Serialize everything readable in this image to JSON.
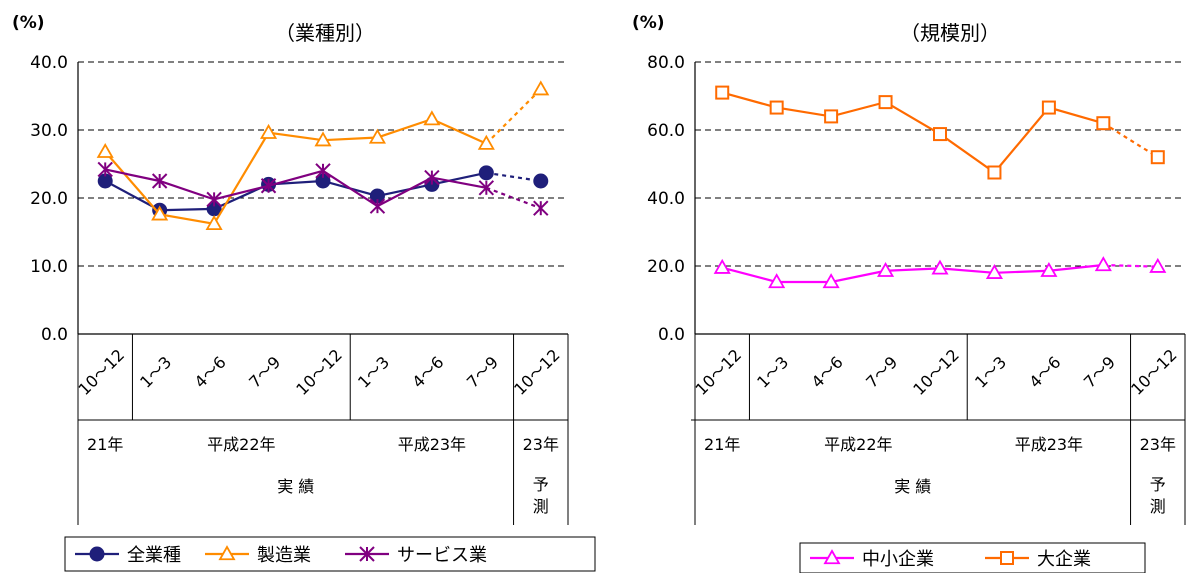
{
  "charts": [
    {
      "unit": "(%)",
      "title": "（業種別）",
      "ylim": [
        0,
        40
      ],
      "yticks": [
        "0.0",
        "10.0",
        "20.0",
        "30.0",
        "40.0"
      ],
      "ytick_values": [
        0,
        10,
        20,
        30,
        40
      ],
      "categories": [
        "10~12",
        "1~3",
        "4~6",
        "7~9",
        "10~12",
        "1~3",
        "4~6",
        "7~9",
        "10~12"
      ],
      "years": [
        {
          "label": "21年",
          "from": 0,
          "to": 0
        },
        {
          "label": "平成22年",
          "from": 1,
          "to": 4
        },
        {
          "label": "平成23年",
          "from": 5,
          "to": 7
        },
        {
          "label": "23年",
          "from": 8,
          "to": 8
        }
      ],
      "phases": [
        {
          "label": "実 績",
          "from": 0,
          "to": 7
        },
        {
          "label": "予\n測",
          "from": 8,
          "to": 8
        }
      ],
      "legend_position": "bottom"
    },
    {
      "unit": "(%)",
      "title": "（規模別）",
      "ylim": [
        0,
        80
      ],
      "yticks": [
        "0.0",
        "20.0",
        "40.0",
        "60.0",
        "80.0"
      ],
      "ytick_values": [
        0,
        20,
        40,
        60,
        80
      ],
      "categories": [
        "10~12",
        "1~3",
        "4~6",
        "7~9",
        "10~12",
        "1~3",
        "4~6",
        "7~9",
        "10~12"
      ],
      "years": [
        {
          "label": "21年",
          "from": 0,
          "to": 0
        },
        {
          "label": "平成22年",
          "from": 1,
          "to": 4
        },
        {
          "label": "平成23年",
          "from": 5,
          "to": 7
        },
        {
          "label": "23年",
          "from": 8,
          "to": 8
        }
      ],
      "phases": [
        {
          "label": "実 績",
          "from": 0,
          "to": 7
        },
        {
          "label": "予\n測",
          "from": 8,
          "to": 8
        }
      ],
      "legend_position": "bottom"
    }
  ],
  "chart_data": [
    {
      "type": "line",
      "title": "（業種別）",
      "ylabel": "(%)",
      "ylim": [
        0,
        40
      ],
      "grid": true,
      "categories": [
        "10~12",
        "1~3",
        "4~6",
        "7~9",
        "10~12",
        "1~3",
        "4~6",
        "7~9",
        "10~12"
      ],
      "forecast_from_index": 7,
      "series": [
        {
          "name": "全業種",
          "color": "#1f1f7a",
          "marker": "circle",
          "values": [
            22.5,
            18.2,
            18.4,
            22.0,
            22.5,
            20.3,
            22.0,
            23.7,
            22.5
          ]
        },
        {
          "name": "製造業",
          "color": "#ff8c00",
          "marker": "triangle",
          "values": [
            26.8,
            17.6,
            16.2,
            29.6,
            28.5,
            28.9,
            31.6,
            28.0,
            36.0
          ]
        },
        {
          "name": "サービス業",
          "color": "#800080",
          "marker": "asterisk",
          "values": [
            24.2,
            22.5,
            19.8,
            21.8,
            24.0,
            18.8,
            23.0,
            21.5,
            18.5
          ]
        }
      ]
    },
    {
      "type": "line",
      "title": "（規模別）",
      "ylabel": "(%)",
      "ylim": [
        0,
        80
      ],
      "grid": true,
      "categories": [
        "10~12",
        "1~3",
        "4~6",
        "7~9",
        "10~12",
        "1~3",
        "4~6",
        "7~9",
        "10~12"
      ],
      "forecast_from_index": 7,
      "series": [
        {
          "name": "中小企業",
          "color": "#ff00ff",
          "marker": "triangle",
          "values": [
            19.5,
            15.3,
            15.3,
            18.6,
            19.3,
            18.0,
            18.6,
            20.3,
            19.8
          ]
        },
        {
          "name": "大企業",
          "color": "#ff6a00",
          "marker": "square",
          "values": [
            71.0,
            66.6,
            64.0,
            68.2,
            58.8,
            47.5,
            66.6,
            62.0,
            52.0
          ]
        }
      ]
    }
  ]
}
